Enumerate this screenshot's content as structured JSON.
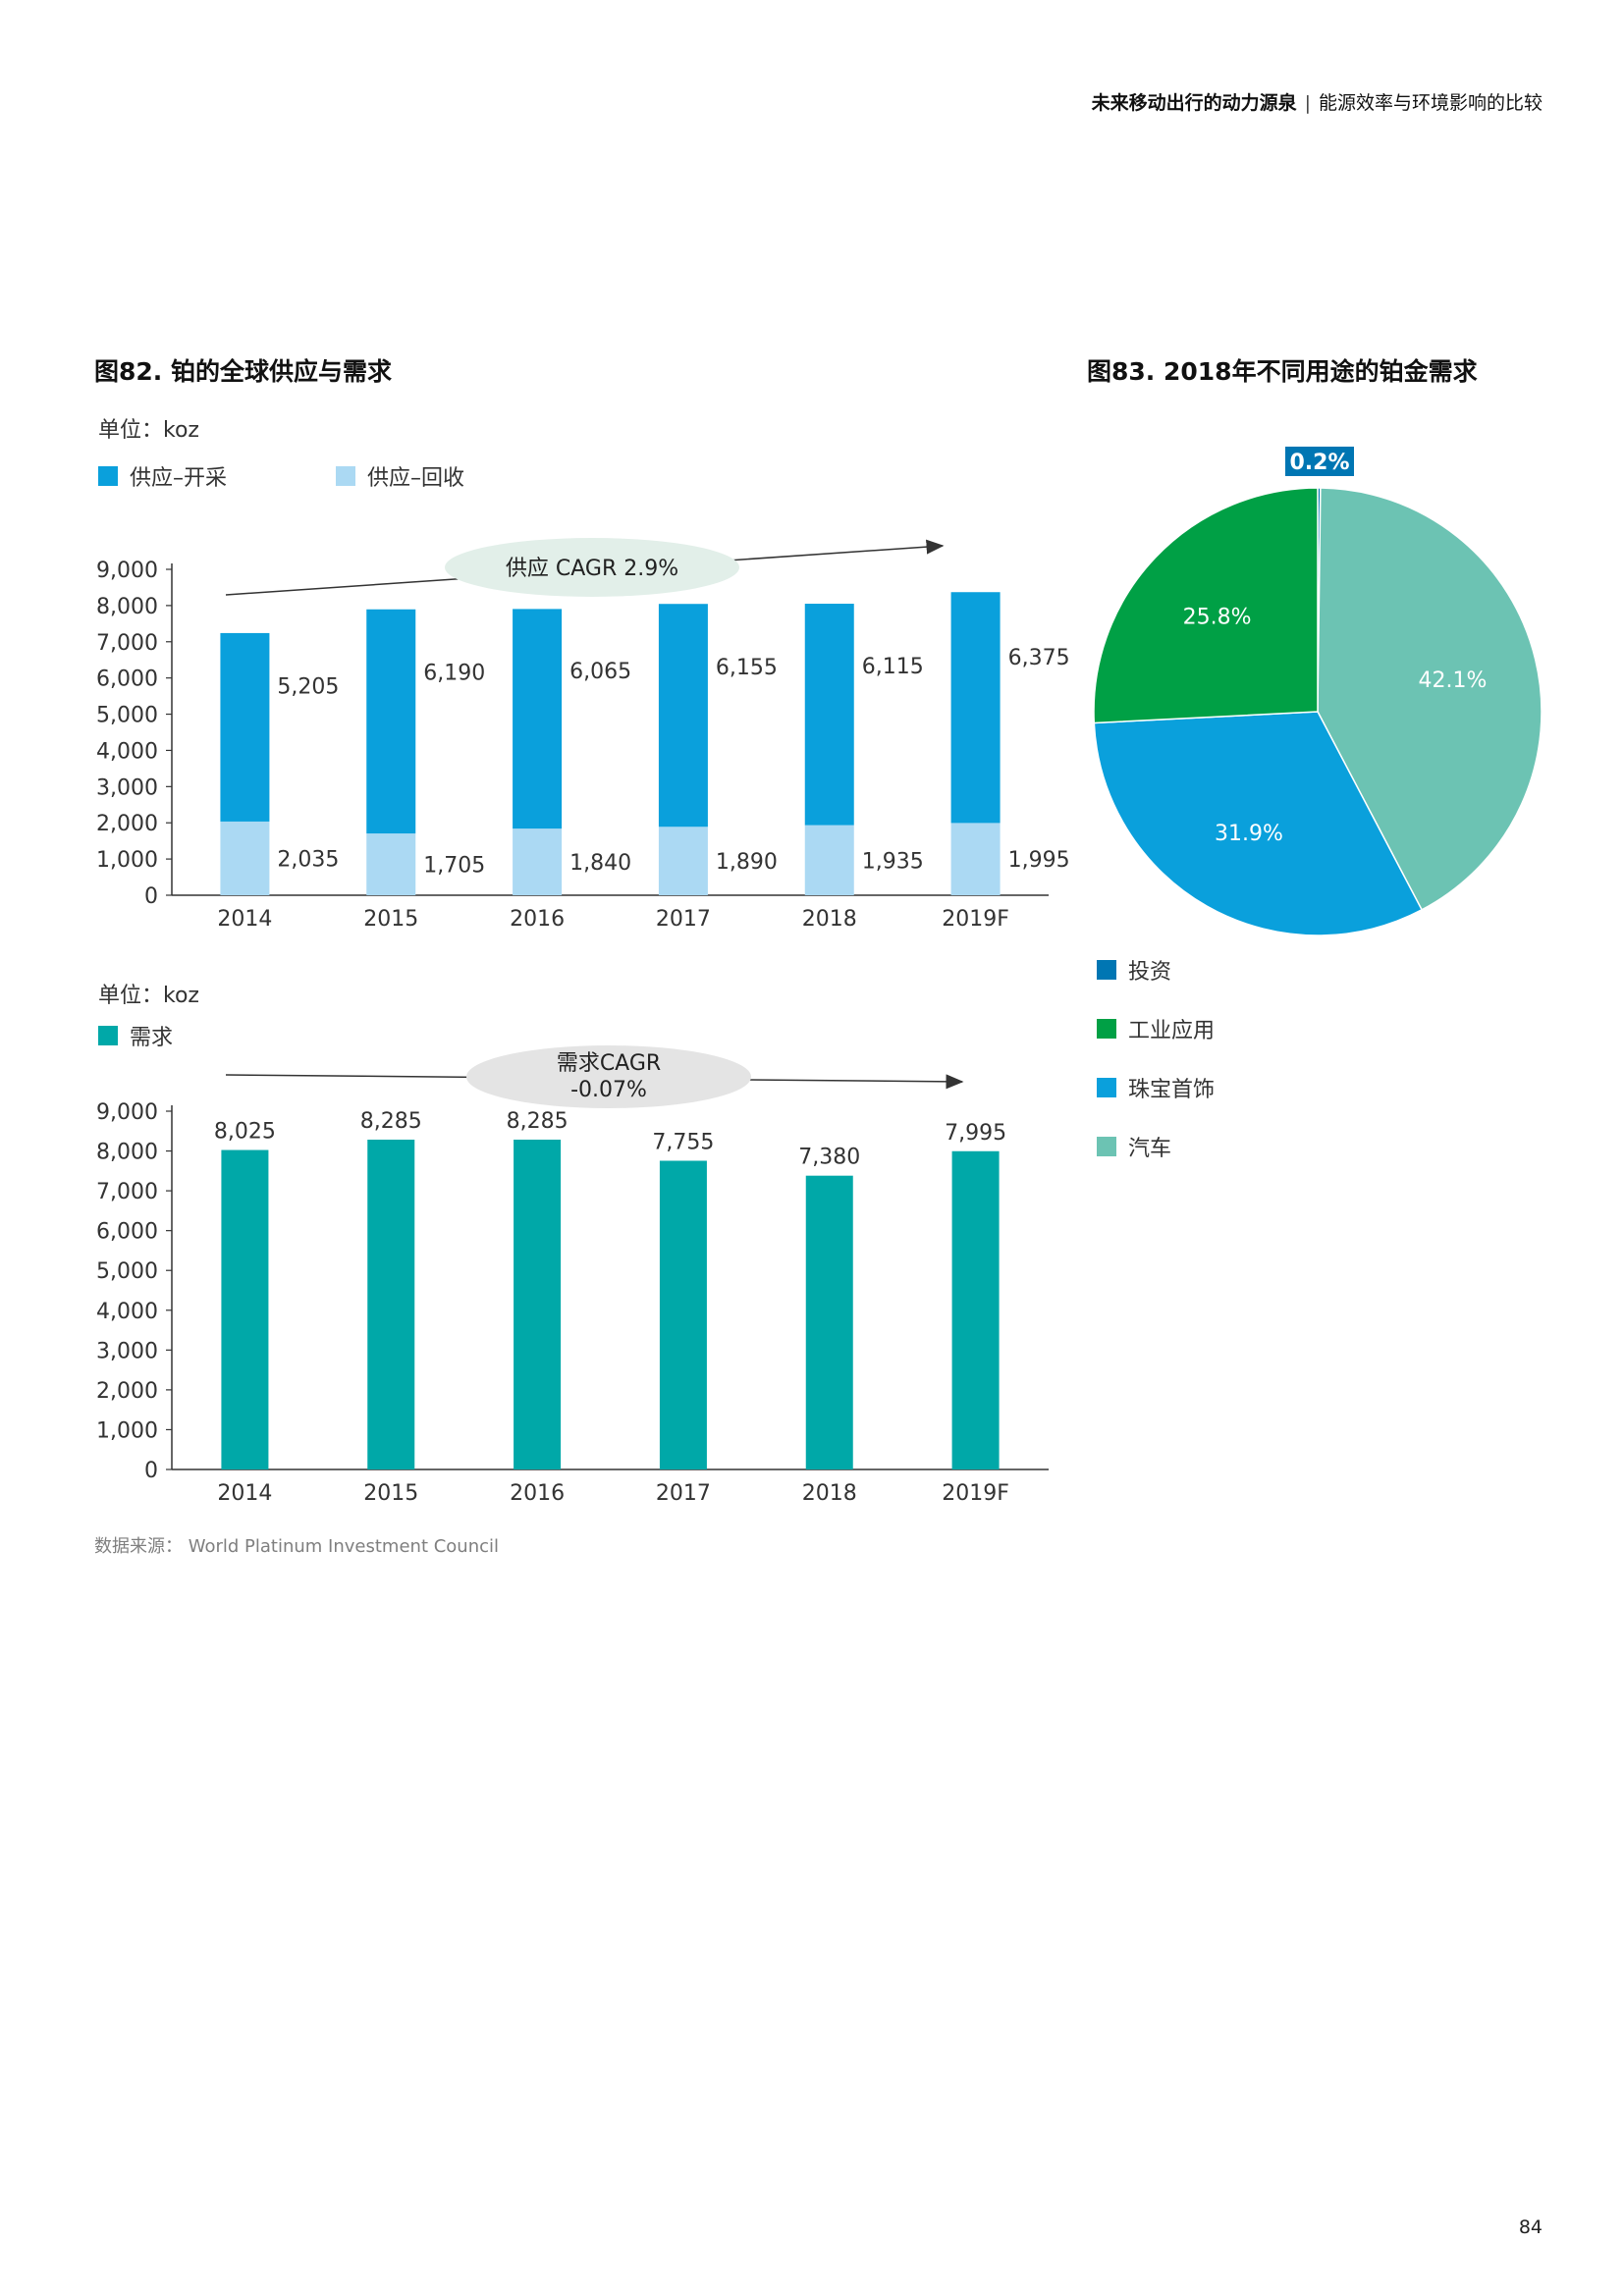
{
  "header": {
    "title_bold": "未来移动出行的动力源泉",
    "separator": "|",
    "subtitle": "能源效率与环境影响的比较"
  },
  "fig82": {
    "title": "图82. 铂的全球供应与需求",
    "supply_unit": "单位：koz",
    "demand_unit": "单位：koz"
  },
  "fig83": {
    "title": "图83. 2018年不同用途的铂金需求"
  },
  "source": "数据来源：  World Platinum Investment Council",
  "page_number": "84",
  "colors": {
    "mining": "#0aa0dc",
    "recycle": "#abd9f3",
    "demand": "#00a8a8",
    "investment": "#0076b3",
    "industrial": "#00a045",
    "jewelry": "#0aa0dc",
    "auto": "#6cc3b3"
  },
  "chart_data": [
    {
      "type": "bar",
      "stacked": true,
      "categories": [
        "2014",
        "2015",
        "2016",
        "2017",
        "2018",
        "2019F"
      ],
      "series": [
        {
          "name": "供应–开采",
          "values": [
            5205,
            6190,
            6065,
            6155,
            6115,
            6375
          ],
          "labels": [
            "5,205",
            "6,190",
            "6,065",
            "6,155",
            "6,115",
            "6,375"
          ],
          "color": "#0aa0dc"
        },
        {
          "name": "供应–回收",
          "values": [
            2035,
            1705,
            1840,
            1890,
            1935,
            1995
          ],
          "labels": [
            "2,035",
            "1,705",
            "1,840",
            "1,890",
            "1,935",
            "1,995"
          ],
          "color": "#abd9f3"
        }
      ],
      "ylim": [
        0,
        9000
      ],
      "yticks": [
        0,
        1000,
        2000,
        3000,
        4000,
        5000,
        6000,
        7000,
        8000,
        9000
      ],
      "ytick_labels": [
        "0",
        "1,000",
        "2,000",
        "3,000",
        "4,000",
        "5,000",
        "6,000",
        "7,000",
        "8,000",
        "9,000"
      ],
      "annotation": "供应 CAGR 2.9%",
      "grid": false
    },
    {
      "type": "bar",
      "categories": [
        "2014",
        "2015",
        "2016",
        "2017",
        "2018",
        "2019F"
      ],
      "series": [
        {
          "name": "需求",
          "values": [
            8025,
            8285,
            8285,
            7755,
            7380,
            7995
          ],
          "labels": [
            "8,025",
            "8,285",
            "8,285",
            "7,755",
            "7,380",
            "7,995"
          ],
          "color": "#00a8a8"
        }
      ],
      "ylim": [
        0,
        9000
      ],
      "yticks": [
        0,
        1000,
        2000,
        3000,
        4000,
        5000,
        6000,
        7000,
        8000,
        9000
      ],
      "ytick_labels": [
        "0",
        "1,000",
        "2,000",
        "3,000",
        "4,000",
        "5,000",
        "6,000",
        "7,000",
        "8,000",
        "9,000"
      ],
      "annotation": [
        "需求CAGR",
        "-0.07%"
      ],
      "grid": false
    },
    {
      "type": "pie",
      "slices": [
        {
          "name": "投资",
          "value": 0.2,
          "label": "0.2%",
          "color": "#0076b3"
        },
        {
          "name": "汽车",
          "value": 42.1,
          "label": "42.1%",
          "color": "#6cc3b3"
        },
        {
          "name": "珠宝首饰",
          "value": 31.9,
          "label": "31.9%",
          "color": "#0aa0dc"
        },
        {
          "name": "工业应用",
          "value": 25.8,
          "label": "25.8%",
          "color": "#00a045"
        }
      ],
      "legend": [
        {
          "name": "投资",
          "color": "#0076b3"
        },
        {
          "name": "工业应用",
          "color": "#00a045"
        },
        {
          "name": "珠宝首饰",
          "color": "#0aa0dc"
        },
        {
          "name": "汽车",
          "color": "#6cc3b3"
        }
      ],
      "legend_position": "bottom-left"
    }
  ]
}
